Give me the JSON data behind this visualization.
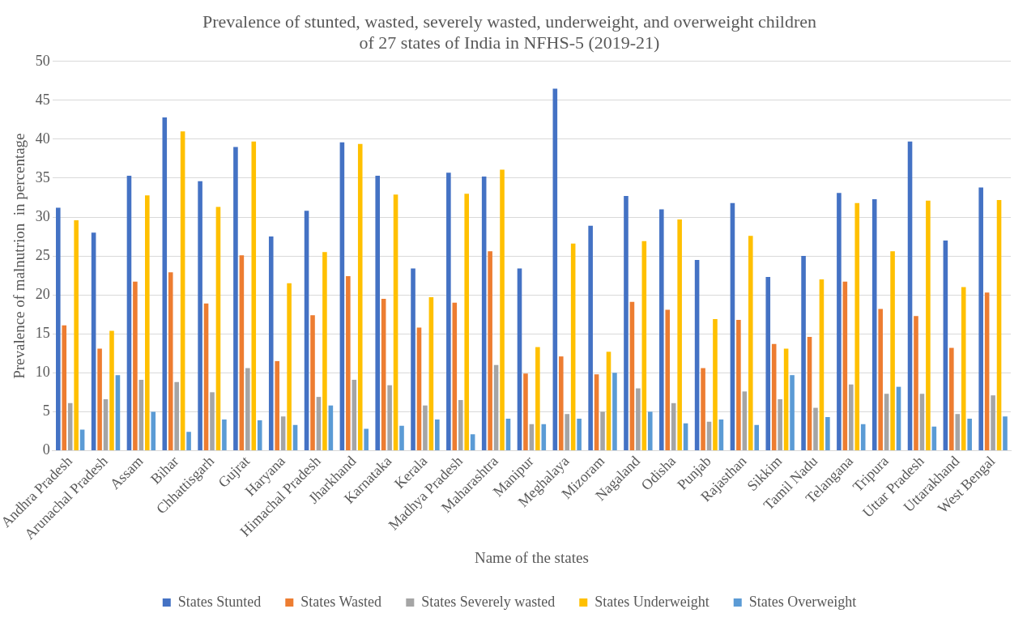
{
  "chart_data": {
    "type": "bar",
    "title": "Prevalence of stunted, wasted, severely wasted, underweight, and overweight children\nof 27 states of India in NFHS-5 (2019-21)",
    "xlabel": "Name of the states",
    "ylabel": "Prevalence of malnutrion  in percentage",
    "categories": [
      "Andhra Pradesh",
      "Arunachal Pradesh",
      "Assam",
      "Bihar",
      "Chhattisgarh",
      "Gujrat",
      "Haryana",
      "Himachal Pradesh",
      "Jharkhand",
      "Karnataka",
      "Kerala",
      "Madhya Pradesh",
      "Maharashtra",
      "Manipur",
      "Meghalaya",
      "Mizoram",
      "Nagaland",
      "Odisha",
      "Punjab",
      "Rajasthan",
      "Sikkim",
      "Tamil Nadu",
      "Telangana",
      "Tripura",
      "Uttar Pradesh",
      "Uttarakhand",
      "West Bengal"
    ],
    "series": [
      {
        "name": "States Stunted",
        "color": "#4472c4",
        "values": [
          31.2,
          28,
          35.3,
          42.8,
          34.6,
          39,
          27.5,
          30.8,
          39.6,
          35.3,
          23.4,
          35.7,
          35.2,
          23.4,
          46.5,
          28.9,
          32.7,
          31,
          24.5,
          31.8,
          22.3,
          25,
          33.1,
          32.3,
          39.7,
          27,
          33.8
        ]
      },
      {
        "name": "States Wasted",
        "color": "#ed7d31",
        "values": [
          16.1,
          13.1,
          21.7,
          22.9,
          18.9,
          25.1,
          11.5,
          17.4,
          22.4,
          19.5,
          15.8,
          19,
          25.6,
          9.9,
          12.1,
          9.8,
          19.1,
          18.1,
          10.6,
          16.8,
          13.7,
          14.6,
          21.7,
          18.2,
          17.3,
          13.2,
          20.3
        ]
      },
      {
        "name": "States Severely wasted",
        "color": "#a5a5a5",
        "values": [
          6.1,
          6.6,
          9.1,
          8.8,
          7.5,
          10.6,
          4.4,
          6.9,
          9.1,
          8.4,
          5.8,
          6.5,
          11,
          3.4,
          4.7,
          5,
          8,
          6.1,
          3.7,
          7.6,
          6.6,
          5.5,
          8.5,
          7.3,
          7.3,
          4.7,
          7.1
        ]
      },
      {
        "name": "States Underweight",
        "color": "#ffc000",
        "values": [
          29.6,
          15.4,
          32.8,
          41,
          31.3,
          39.7,
          21.5,
          25.5,
          39.4,
          32.9,
          19.7,
          33,
          36.1,
          13.3,
          26.6,
          12.7,
          26.9,
          29.7,
          16.9,
          27.6,
          13.1,
          22,
          31.8,
          25.6,
          32.1,
          21,
          32.2
        ]
      },
      {
        "name": "States Overweight",
        "color": "#5b9bd5",
        "values": [
          2.7,
          9.7,
          5,
          2.4,
          4,
          3.9,
          3.3,
          5.8,
          2.8,
          3.2,
          4,
          2.1,
          4.1,
          3.4,
          4.1,
          10,
          5,
          3.5,
          4,
          3.3,
          9.7,
          4.3,
          3.4,
          8.2,
          3.1,
          4.1,
          4.4
        ]
      }
    ],
    "ylim": [
      0,
      50
    ],
    "yticks": [
      0,
      5,
      10,
      15,
      20,
      25,
      30,
      35,
      40,
      45,
      50
    ],
    "grid": "y",
    "legend": "bottom"
  }
}
